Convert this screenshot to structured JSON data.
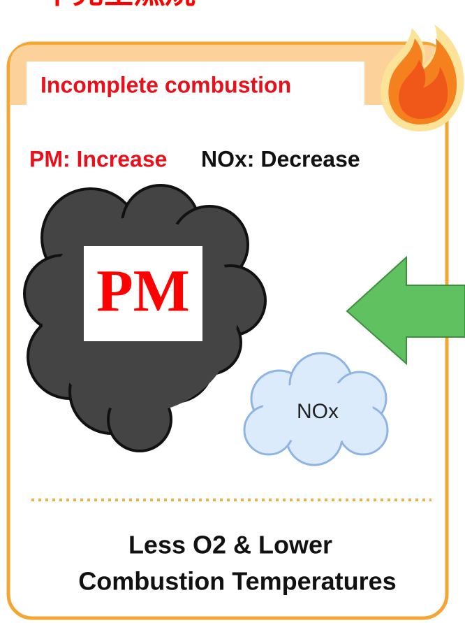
{
  "header": {
    "title": "不完全燃焼"
  },
  "panel": {
    "tab": "Incomplete combustion",
    "pm_effect": "PM: Increase",
    "nox_effect": "NOx: Decrease",
    "pm_label": "PM",
    "nox_label": "NOx",
    "caption": [
      "Less O2 & Lower",
      "Combustion Temperatures"
    ]
  }
}
